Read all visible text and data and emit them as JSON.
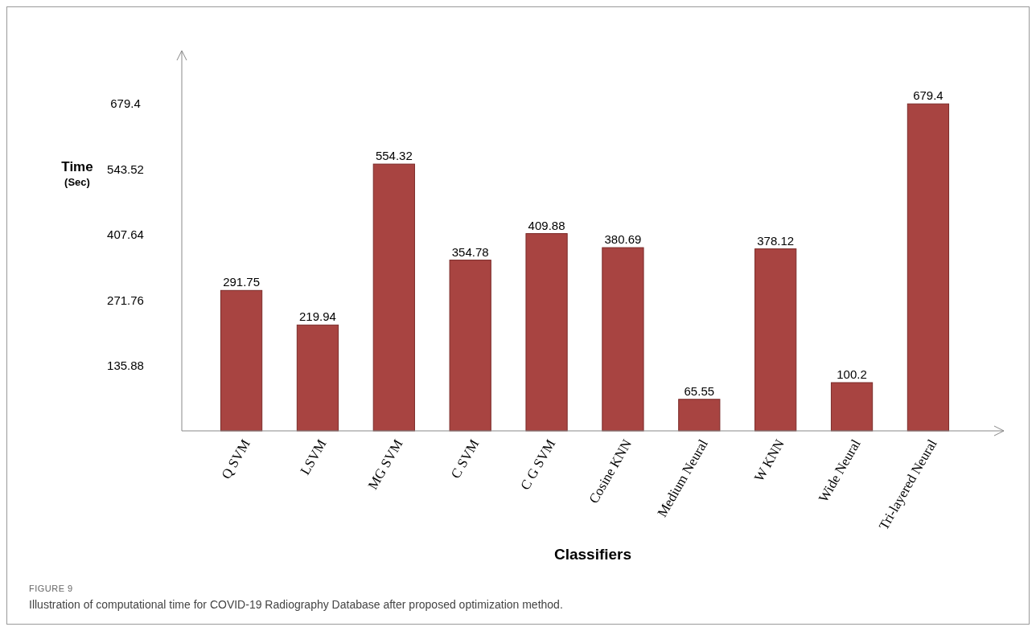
{
  "chart_data": {
    "type": "bar",
    "xlabel": "Classifiers",
    "ylabel": "Time\n(Sec)",
    "categories": [
      "Q SVM",
      "LSVM",
      "MG SVM",
      "C SVM",
      "C G SVM",
      "Cosine KNN",
      "Medium Neural",
      "W KNN",
      "Wide Neural",
      "Tri-layered Neural"
    ],
    "values": [
      291.75,
      219.94,
      554.32,
      354.78,
      409.88,
      380.69,
      65.55,
      378.12,
      100.2,
      679.4
    ],
    "color": "#a84441",
    "data_labels": true,
    "ylim": [
      0,
      790
    ],
    "yticks": [
      135.88,
      271.76,
      407.64,
      543.52,
      679.4
    ],
    "grid": false,
    "annotations": [
      "FIGURE 9",
      "Illustration of computational time for COVID-19 Radiography Database after proposed optimization method."
    ]
  }
}
